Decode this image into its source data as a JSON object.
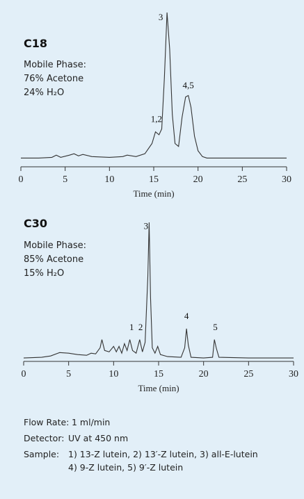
{
  "chart_data": [
    {
      "type": "line",
      "label": "C18",
      "notes": [
        "Mobile Phase:",
        "76% Acetone",
        "24% H₂O"
      ],
      "xlabel": "Time (min)",
      "xlim": [
        0,
        30
      ],
      "xticks": [
        0,
        5,
        10,
        15,
        20,
        25,
        30
      ],
      "ylim": [
        -6,
        100
      ],
      "color": "#333333",
      "x": [
        0,
        2,
        3.5,
        4,
        4.5,
        5.5,
        6,
        6.5,
        7,
        8,
        10,
        11.5,
        12,
        13,
        14,
        14.8,
        15.2,
        15.6,
        15.9,
        16.2,
        16.5,
        16.8,
        17.1,
        17.4,
        17.8,
        18.2,
        18.6,
        18.9,
        19.2,
        19.6,
        20,
        20.5,
        21,
        25,
        30
      ],
      "values": [
        0,
        0,
        0.5,
        2,
        0.5,
        2,
        3,
        1.5,
        2.5,
        1,
        0.5,
        1,
        2,
        1,
        3,
        10,
        18,
        16,
        20,
        55,
        100,
        75,
        30,
        10,
        8,
        28,
        42,
        43,
        35,
        15,
        5,
        1,
        0,
        0,
        0
      ],
      "annotations": [
        {
          "text": "1,2",
          "x": 15.3,
          "y": 22
        },
        {
          "text": "3",
          "x": 15.8,
          "y": 92
        },
        {
          "text": "4,5",
          "x": 18.9,
          "y": 45
        }
      ]
    },
    {
      "type": "line",
      "label": "C30",
      "notes": [
        "Mobile Phase:",
        "85% Acetone",
        "15% H₂O"
      ],
      "xlabel": "Time (min)",
      "xlim": [
        0,
        30
      ],
      "xticks": [
        0,
        5,
        10,
        15,
        20,
        25,
        30
      ],
      "ylim": [
        -2,
        100
      ],
      "color": "#333333",
      "x": [
        0,
        2,
        3,
        4,
        5,
        6,
        7,
        7.5,
        8,
        8.5,
        8.7,
        9,
        9.5,
        10,
        10.3,
        10.6,
        10.9,
        11.2,
        11.5,
        11.8,
        12.1,
        12.5,
        12.9,
        13.2,
        13.5,
        13.8,
        13.95,
        14.1,
        14.3,
        14.6,
        14.9,
        15.2,
        16,
        17.5,
        17.9,
        18.1,
        18.3,
        18.6,
        20,
        21,
        21.2,
        21.4,
        21.7,
        25,
        30
      ],
      "values": [
        0.5,
        1,
        2,
        4.5,
        4,
        3,
        2.5,
        4,
        3.5,
        8,
        14,
        6,
        5,
        9,
        5,
        9,
        4,
        11,
        6,
        14,
        6,
        4,
        14,
        5,
        12,
        60,
        100,
        45,
        8,
        4,
        9,
        3,
        1.5,
        1,
        8,
        22,
        10,
        1,
        0.5,
        1,
        14,
        8,
        1,
        0.5,
        0.5
      ],
      "annotations": [
        {
          "text": "1",
          "x": 12,
          "y": 18
        },
        {
          "text": "2",
          "x": 13,
          "y": 18
        },
        {
          "text": "3",
          "x": 13.6,
          "y": 92
        },
        {
          "text": "4",
          "x": 18.1,
          "y": 26
        },
        {
          "text": "5",
          "x": 21.3,
          "y": 18
        }
      ]
    }
  ],
  "footer": [
    {
      "label": "Flow Rate:",
      "value": "1 ml/min"
    },
    {
      "label": "Detector:",
      "value": "UV at 450 nm"
    },
    {
      "label": "Sample:",
      "value": "1) 13-Z lutein,  2) 13′-Z lutein,  3) all-E-lutein"
    },
    {
      "label": "",
      "value": "4) 9-Z lutein,  5) 9′-Z lutein"
    }
  ]
}
